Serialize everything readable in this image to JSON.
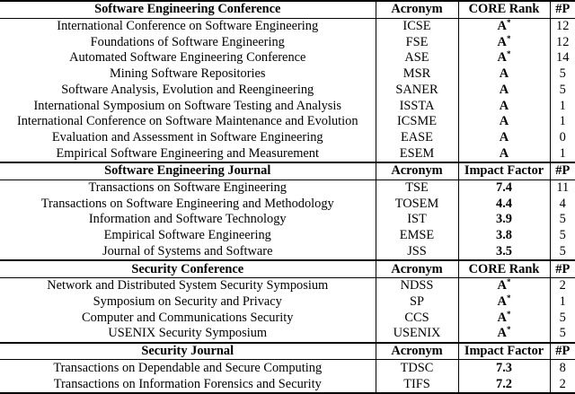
{
  "sections": [
    {
      "title": "Software Engineering Conference",
      "col_acronym": "Acronym",
      "col_metric": "CORE Rank",
      "col_count": "#P",
      "rows": [
        {
          "name": "International Conference on Software Engineering",
          "acronym": "ICSE",
          "metric": "A",
          "star": "*",
          "count": "12"
        },
        {
          "name": "Foundations of Software Engineering",
          "acronym": "FSE",
          "metric": "A",
          "star": "*",
          "count": "12"
        },
        {
          "name": "Automated Software Engineering Conference",
          "acronym": "ASE",
          "metric": "A",
          "star": "*",
          "count": "14"
        },
        {
          "name": "Mining Software Repositories",
          "acronym": "MSR",
          "metric": "A",
          "star": "",
          "count": "5"
        },
        {
          "name": "Software Analysis, Evolution and Reengineering",
          "acronym": "SANER",
          "metric": "A",
          "star": "",
          "count": "5"
        },
        {
          "name": "International Symposium on Software Testing and Analysis",
          "acronym": "ISSTA",
          "metric": "A",
          "star": "",
          "count": "1"
        },
        {
          "name": "International Conference on Software Maintenance and Evolution",
          "acronym": "ICSME",
          "metric": "A",
          "star": "",
          "count": "1"
        },
        {
          "name": "Evaluation and Assessment in Software Engineering",
          "acronym": "EASE",
          "metric": "A",
          "star": "",
          "count": "0"
        },
        {
          "name": "Empirical Software Engineering and Measurement",
          "acronym": "ESEM",
          "metric": "A",
          "star": "",
          "count": "1"
        }
      ]
    },
    {
      "title": "Software Engineering Journal",
      "col_acronym": "Acronym",
      "col_metric": "Impact Factor",
      "col_count": "#P",
      "rows": [
        {
          "name": "Transactions on Software Engineering",
          "acronym": "TSE",
          "metric": "7.4",
          "star": "",
          "count": "11"
        },
        {
          "name": "Transactions on Software Engineering and Methodology",
          "acronym": "TOSEM",
          "metric": "4.4",
          "star": "",
          "count": "4"
        },
        {
          "name": "Information and Software Technology",
          "acronym": "IST",
          "metric": "3.9",
          "star": "",
          "count": "5"
        },
        {
          "name": "Empirical Software Engineering",
          "acronym": "EMSE",
          "metric": "3.8",
          "star": "",
          "count": "5"
        },
        {
          "name": "Journal of Systems and Software",
          "acronym": "JSS",
          "metric": "3.5",
          "star": "",
          "count": "5"
        }
      ]
    },
    {
      "title": "Security Conference",
      "col_acronym": "Acronym",
      "col_metric": "CORE Rank",
      "col_count": "#P",
      "rows": [
        {
          "name": "Network and Distributed System Security Symposium",
          "acronym": "NDSS",
          "metric": "A",
          "star": "*",
          "count": "2"
        },
        {
          "name": "Symposium on Security and Privacy",
          "acronym": "SP",
          "metric": "A",
          "star": "*",
          "count": "1"
        },
        {
          "name": "Computer and Communications Security",
          "acronym": "CCS",
          "metric": "A",
          "star": "*",
          "count": "5"
        },
        {
          "name": "USENIX Security Symposium",
          "acronym": "USENIX",
          "metric": "A",
          "star": "*",
          "count": "5"
        }
      ]
    },
    {
      "title": "Security Journal",
      "col_acronym": "Acronym",
      "col_metric": "Impact Factor",
      "col_count": "#P",
      "rows": [
        {
          "name": "Transactions on Dependable and Secure Computing",
          "acronym": "TDSC",
          "metric": "7.3",
          "star": "",
          "count": "8"
        },
        {
          "name": "Transactions on Information Forensics and Security",
          "acronym": "TIFS",
          "metric": "7.2",
          "star": "",
          "count": "2"
        }
      ]
    }
  ]
}
